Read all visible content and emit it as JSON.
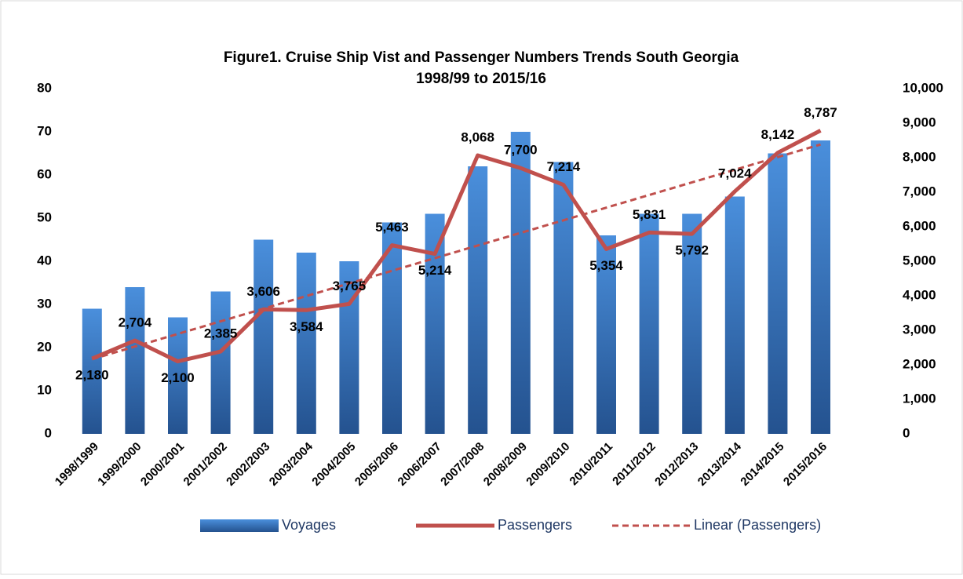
{
  "chart_data": {
    "type": "bar-line",
    "title": "Figure1.  Cruise Ship Vist and Passenger Numbers Trends South Georgia",
    "subtitle": "1998/99 to 2015/16",
    "categories": [
      "1998/1999",
      "1999/2000",
      "2000/2001",
      "2001/2002",
      "2002/2003",
      "2003/2004",
      "2004/2005",
      "2005/2006",
      "2006/2007",
      "2007/2008",
      "2008/2009",
      "2009/2010",
      "2010/2011",
      "2011/2012",
      "2012/2013",
      "2013/2014",
      "2014/2015",
      "2015/2016"
    ],
    "series": [
      {
        "name": "Voyages",
        "type": "bar",
        "color": "#3a78c4",
        "values": [
          29,
          34,
          27,
          33,
          45,
          42,
          40,
          49,
          51,
          62,
          70,
          63,
          46,
          51,
          51,
          55,
          65,
          68
        ]
      },
      {
        "name": "Passengers",
        "type": "line",
        "axis": "y2",
        "color": "#c0504d",
        "values": [
          2180,
          2704,
          2100,
          2385,
          3606,
          3584,
          3765,
          5463,
          5214,
          8068,
          7700,
          7214,
          5354,
          5831,
          5792,
          7024,
          8142,
          8787
        ],
        "value_labels": [
          "2,180",
          "2,704",
          "2,100",
          "2,385",
          "3,606",
          "3,584",
          "3,765",
          "5,463",
          "5,214",
          "8,068",
          "7,700",
          "7,214",
          "5,354",
          "5,831",
          "5,792",
          "7,024",
          "8,142",
          "8,787"
        ]
      },
      {
        "name": "Linear (Passengers)",
        "type": "trend",
        "axis": "y2",
        "color": "#c0504d",
        "values": [
          2163,
          2529,
          2895,
          3260,
          3626,
          3992,
          4358,
          4724,
          5090,
          5456,
          5822,
          6187,
          6553,
          6919,
          7285,
          7651,
          8017,
          8383
        ]
      }
    ],
    "ylim": [
      0,
      80
    ],
    "yticks": [
      0,
      10,
      20,
      30,
      40,
      50,
      60,
      70,
      80
    ],
    "y2lim": [
      0,
      10000
    ],
    "y2ticks": [
      0,
      {
        "value": 1000,
        "label": "1,000"
      },
      {
        "value": 2000,
        "label": "2,000"
      },
      {
        "value": 3000,
        "label": "3,000"
      },
      {
        "value": 4000,
        "label": "4,000"
      },
      {
        "value": 5000,
        "label": "5,000"
      },
      {
        "value": 6000,
        "label": "6,000"
      },
      {
        "value": 7000,
        "label": "7,000"
      },
      {
        "value": 8000,
        "label": "8,000"
      },
      {
        "value": 9000,
        "label": "9,000"
      },
      {
        "value": 10000,
        "label": "10,000"
      }
    ],
    "grid": false,
    "legend": "bottom"
  }
}
